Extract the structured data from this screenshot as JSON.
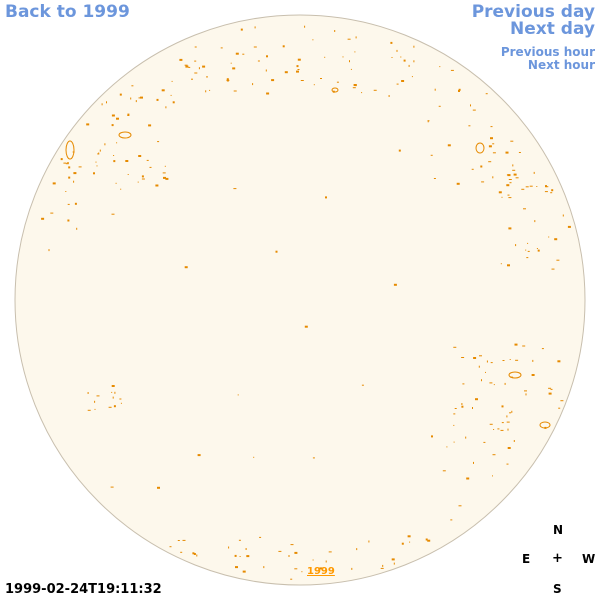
{
  "nav": {
    "back_label": "Back to 1999",
    "prev_day_label": "Previous day",
    "next_day_label": "Next day",
    "prev_hour_label": "Previous hour",
    "next_hour_label": "Next hour"
  },
  "timestamp": "1999-02-24T19:11:32",
  "year_link": "1999",
  "compass": {
    "north": "N",
    "east": "E",
    "center": "+",
    "west": "W",
    "south": "S"
  },
  "colors": {
    "disk_fill": "#fdf8ec",
    "disk_border": "#c8bfae",
    "contour": "#e68a00",
    "link": "#6c96dc"
  },
  "icons": {
    "compass_center": "crosshair-icon"
  }
}
